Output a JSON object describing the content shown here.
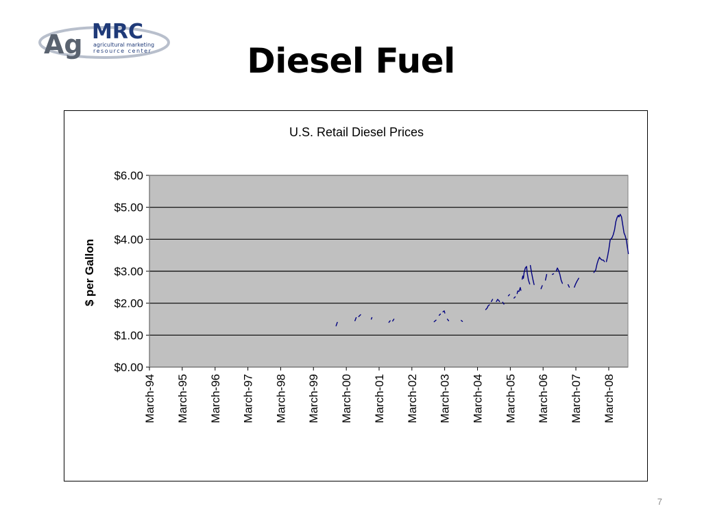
{
  "slide": {
    "title": "Diesel Fuel",
    "page_number": "7"
  },
  "logo": {
    "primary": "Ag",
    "secondary": "MRC",
    "tagline_1": "agricultural marketing",
    "tagline_2": "resource center",
    "colors": {
      "dark": "#5a6370",
      "brand": "#1f3a78",
      "ring": "#b8bfcc"
    }
  },
  "colors": {
    "plot_background": "#c0c0c0",
    "series_line": "#000080",
    "gridline": "#000000"
  },
  "chart_data": {
    "type": "line",
    "title": "U.S. Retail Diesel Prices",
    "xlabel": "",
    "ylabel": "$ per Gallon",
    "ylim": [
      0,
      6
    ],
    "yticks": [
      0,
      1,
      2,
      3,
      4,
      5,
      6
    ],
    "ytick_labels": [
      "$0.00",
      "$1.00",
      "$2.00",
      "$3.00",
      "$4.00",
      "$5.00",
      "$6.00"
    ],
    "xlim": [
      "1994-03",
      "2008-10"
    ],
    "xtick_labels": [
      "March-94",
      "March-95",
      "March-96",
      "March-97",
      "March-98",
      "March-99",
      "March-00",
      "March-01",
      "March-02",
      "March-03",
      "March-04",
      "March-05",
      "March-06",
      "March-07",
      "March-08"
    ],
    "grid": "horizontal",
    "legend": "none",
    "series": [
      {
        "segments": [
          [
            [
              "1999-11-08",
              1.29
            ],
            [
              "1999-11-22",
              1.4
            ]
          ],
          [
            [
              "2000-06-05",
              1.45
            ],
            [
              "2000-06-19",
              1.55
            ]
          ],
          [
            [
              "2000-07-17",
              1.58
            ],
            [
              "2000-08-07",
              1.64
            ]
          ],
          [
            [
              "2000-12-04",
              1.5
            ],
            [
              "2000-12-11",
              1.55
            ]
          ],
          [
            [
              "2001-06-18",
              1.4
            ],
            [
              "2001-07-02",
              1.45
            ]
          ],
          [
            [
              "2001-07-30",
              1.44
            ],
            [
              "2001-08-13",
              1.5
            ]
          ],
          [
            [
              "2002-11-04",
              1.42
            ],
            [
              "2002-11-25",
              1.47
            ]
          ],
          [
            [
              "2002-12-30",
              1.62
            ],
            [
              "2003-01-13",
              1.66
            ]
          ],
          [
            [
              "2003-02-10",
              1.73
            ],
            [
              "2003-02-24",
              1.76
            ],
            [
              "2003-03-03",
              1.69
            ]
          ],
          [
            [
              "2003-03-31",
              1.5
            ],
            [
              "2003-04-14",
              1.45
            ]
          ],
          [
            [
              "2003-09-01",
              1.46
            ],
            [
              "2003-09-15",
              1.43
            ]
          ],
          [
            [
              "2004-05-31",
              1.8
            ],
            [
              "2004-06-14",
              1.84
            ],
            [
              "2004-06-28",
              1.92
            ],
            [
              "2004-07-12",
              1.95
            ]
          ],
          [
            [
              "2004-08-02",
              2.05
            ],
            [
              "2004-08-16",
              2.12
            ]
          ],
          [
            [
              "2004-09-27",
              2.05
            ],
            [
              "2004-10-11",
              2.12
            ],
            [
              "2004-10-25",
              2.08
            ],
            [
              "2004-11-01",
              2.05
            ]
          ],
          [
            [
              "2004-12-06",
              2.03
            ],
            [
              "2004-12-20",
              1.97
            ]
          ],
          [
            [
              "2005-02-07",
              2.23
            ],
            [
              "2005-02-21",
              2.27
            ]
          ],
          [
            [
              "2005-04-11",
              2.16
            ],
            [
              "2005-04-25",
              2.2
            ]
          ],
          [
            [
              "2005-05-16",
              2.3
            ],
            [
              "2005-05-23",
              2.38
            ],
            [
              "2005-06-06",
              2.37
            ],
            [
              "2005-06-20",
              2.49
            ],
            [
              "2005-06-27",
              2.4
            ]
          ],
          [
            [
              "2005-07-11",
              2.75
            ],
            [
              "2005-07-18",
              2.85
            ],
            [
              "2005-07-25",
              2.78
            ],
            [
              "2005-08-01",
              2.95
            ],
            [
              "2005-08-15",
              3.1
            ],
            [
              "2005-08-29",
              3.15
            ],
            [
              "2005-09-05",
              2.95
            ],
            [
              "2005-09-19",
              2.72
            ],
            [
              "2005-10-03",
              2.6
            ]
          ],
          [
            [
              "2005-10-10",
              3.18
            ],
            [
              "2005-10-24",
              2.95
            ],
            [
              "2005-11-07",
              2.75
            ],
            [
              "2005-11-21",
              2.58
            ]
          ],
          [
            [
              "2006-02-06",
              2.45
            ],
            [
              "2006-02-20",
              2.55
            ]
          ],
          [
            [
              "2006-03-27",
              2.72
            ],
            [
              "2006-04-10",
              2.9
            ]
          ],
          [
            [
              "2006-06-12",
              2.9
            ],
            [
              "2006-06-26",
              2.92
            ]
          ],
          [
            [
              "2006-07-24",
              3.0
            ],
            [
              "2006-08-07",
              3.1
            ],
            [
              "2006-08-21",
              3.02
            ],
            [
              "2006-09-04",
              2.9
            ],
            [
              "2006-09-18",
              2.72
            ],
            [
              "2006-10-02",
              2.62
            ]
          ],
          [
            [
              "2006-12-04",
              2.58
            ],
            [
              "2006-12-18",
              2.5
            ]
          ],
          [
            [
              "2007-02-12",
              2.5
            ],
            [
              "2007-02-26",
              2.6
            ],
            [
              "2007-03-12",
              2.68
            ],
            [
              "2007-04-02",
              2.78
            ]
          ],
          [
            [
              "2007-09-17",
              2.96
            ],
            [
              "2007-10-08",
              3.04
            ],
            [
              "2007-10-22",
              3.22
            ],
            [
              "2007-11-05",
              3.35
            ],
            [
              "2007-11-19",
              3.44
            ],
            [
              "2007-11-26",
              3.4
            ],
            [
              "2007-12-17",
              3.35
            ],
            [
              "2007-12-31",
              3.35
            ],
            [
              "2008-01-14",
              3.3
            ]
          ],
          [
            [
              "2008-02-04",
              3.3
            ],
            [
              "2008-02-18",
              3.48
            ],
            [
              "2008-03-03",
              3.7
            ],
            [
              "2008-03-17",
              3.98
            ],
            [
              "2008-04-07",
              4.05
            ],
            [
              "2008-04-21",
              4.15
            ],
            [
              "2008-05-05",
              4.3
            ],
            [
              "2008-05-19",
              4.55
            ],
            [
              "2008-06-02",
              4.68
            ],
            [
              "2008-06-16",
              4.75
            ],
            [
              "2008-06-23",
              4.7
            ],
            [
              "2008-07-07",
              4.78
            ],
            [
              "2008-07-21",
              4.7
            ],
            [
              "2008-08-04",
              4.45
            ],
            [
              "2008-08-18",
              4.2
            ],
            [
              "2008-09-01",
              4.1
            ],
            [
              "2008-09-15",
              3.95
            ],
            [
              "2008-09-22",
              3.8
            ],
            [
              "2008-10-06",
              3.55
            ]
          ]
        ]
      }
    ]
  }
}
